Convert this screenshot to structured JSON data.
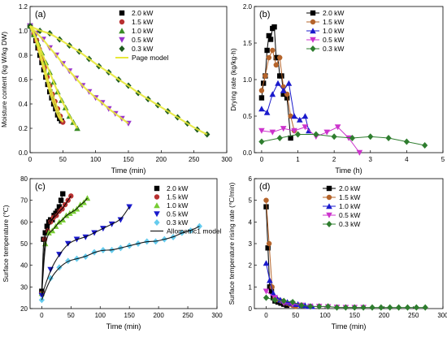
{
  "chart_data": [
    {
      "panel": "(a)",
      "type": "scatter",
      "xlabel": "Time (min)",
      "ylabel": "Moisture content (kg W/kg DW)",
      "xlim": [
        0,
        300
      ],
      "ylim": [
        0,
        1.2
      ],
      "xticks": [
        "0",
        "50",
        "100",
        "150",
        "200",
        "250",
        "300"
      ],
      "yticks": [
        "0.0",
        "0.2",
        "0.4",
        "0.6",
        "0.8",
        "1.0",
        "1.2"
      ],
      "legend_position": "top-center",
      "series": [
        {
          "name": "2.0 kW",
          "color": "#000000",
          "marker": "square",
          "x": [
            0,
            6,
            9,
            12,
            15,
            18,
            21,
            24,
            27,
            30,
            33,
            36,
            39,
            42,
            45,
            48
          ],
          "y": [
            1.04,
            0.97,
            0.92,
            0.86,
            0.8,
            0.74,
            0.68,
            0.62,
            0.56,
            0.5,
            0.45,
            0.4,
            0.36,
            0.31,
            0.28,
            0.26
          ]
        },
        {
          "name": "1.5 kW",
          "color": "#b83030",
          "marker": "circle",
          "x": [
            0,
            6,
            10,
            14,
            18,
            22,
            26,
            30,
            34,
            38,
            42,
            46,
            50
          ],
          "y": [
            1.04,
            0.98,
            0.92,
            0.85,
            0.77,
            0.7,
            0.62,
            0.55,
            0.48,
            0.42,
            0.36,
            0.3,
            0.25
          ]
        },
        {
          "name": "1.0 kW",
          "color": "#3a8c26",
          "marker": "triangle-up",
          "x": [
            0,
            6,
            12,
            18,
            24,
            30,
            36,
            42,
            48,
            54,
            60,
            66,
            72
          ],
          "y": [
            1.04,
            0.97,
            0.9,
            0.82,
            0.74,
            0.66,
            0.58,
            0.5,
            0.43,
            0.37,
            0.3,
            0.25,
            0.2
          ]
        },
        {
          "name": "0.5 kW",
          "color": "#9933cc",
          "marker": "triangle-down",
          "x": [
            0,
            10,
            20,
            30,
            40,
            50,
            60,
            70,
            80,
            90,
            100,
            110,
            120,
            130,
            140,
            150
          ],
          "y": [
            1.04,
            0.98,
            0.93,
            0.86,
            0.8,
            0.73,
            0.67,
            0.61,
            0.55,
            0.5,
            0.45,
            0.41,
            0.36,
            0.32,
            0.28,
            0.24
          ]
        },
        {
          "name": "0.3 kW",
          "color": "#1f5c1f",
          "marker": "diamond",
          "x": [
            0,
            15,
            30,
            45,
            60,
            75,
            90,
            105,
            120,
            135,
            150,
            165,
            180,
            195,
            210,
            225,
            240,
            255,
            270
          ],
          "y": [
            1.04,
            1.0,
            0.98,
            0.93,
            0.88,
            0.83,
            0.77,
            0.71,
            0.66,
            0.6,
            0.55,
            0.49,
            0.44,
            0.39,
            0.34,
            0.29,
            0.24,
            0.19,
            0.15
          ]
        },
        {
          "name": "Page model",
          "color": "#e8e83a",
          "type": "line"
        }
      ]
    },
    {
      "panel": "(b)",
      "type": "line",
      "xlabel": "Time (h)",
      "ylabel": "Drying rate (kg/kg·h)",
      "xlim": [
        -0.2,
        5
      ],
      "ylim": [
        0,
        2
      ],
      "xticks": [
        "0",
        "1",
        "2",
        "3",
        "4",
        "5"
      ],
      "yticks": [
        "0.0",
        "0.5",
        "1.0",
        "1.5",
        "2.0"
      ],
      "legend_position": "top-right",
      "series": [
        {
          "name": "2.0 kW",
          "color": "#000000",
          "marker": "square",
          "x": [
            0.0,
            0.05,
            0.1,
            0.15,
            0.2,
            0.25,
            0.3,
            0.35,
            0.4,
            0.45,
            0.5,
            0.55,
            0.6,
            0.7,
            0.8
          ],
          "y": [
            0.75,
            0.95,
            1.05,
            1.4,
            1.6,
            1.55,
            1.7,
            1.72,
            1.3,
            1.3,
            1.05,
            1.05,
            0.8,
            0.75,
            0.2
          ]
        },
        {
          "name": "1.5 kW",
          "color": "#b5642b",
          "marker": "circle",
          "x": [
            0.0,
            0.1,
            0.2,
            0.3,
            0.4,
            0.5,
            0.6,
            0.7,
            0.8,
            0.9
          ],
          "y": [
            0.85,
            1.05,
            1.3,
            1.4,
            1.2,
            1.3,
            0.9,
            0.8,
            0.5,
            0.3
          ]
        },
        {
          "name": "1.0 kW",
          "color": "#1a1acc",
          "marker": "triangle-up",
          "x": [
            0.0,
            0.15,
            0.3,
            0.45,
            0.6,
            0.75,
            0.9,
            1.05,
            1.2,
            1.3
          ],
          "y": [
            0.6,
            0.55,
            0.8,
            0.95,
            0.85,
            0.95,
            0.5,
            0.45,
            0.5,
            0.3
          ]
        },
        {
          "name": "0.5 kW",
          "color": "#cc33cc",
          "marker": "triangle-down",
          "x": [
            0.0,
            0.3,
            0.6,
            0.9,
            1.2,
            1.5,
            1.8,
            2.1,
            2.4,
            2.7
          ],
          "y": [
            0.3,
            0.28,
            0.33,
            0.3,
            0.35,
            0.22,
            0.28,
            0.35,
            0.2,
            0.0
          ]
        },
        {
          "name": "0.3 kW",
          "color": "#2e7d2e",
          "marker": "diamond",
          "x": [
            0.0,
            0.5,
            1.0,
            1.5,
            2.0,
            2.5,
            3.0,
            3.5,
            4.0,
            4.5
          ],
          "y": [
            0.15,
            0.2,
            0.25,
            0.25,
            0.22,
            0.2,
            0.22,
            0.2,
            0.15,
            0.1
          ]
        }
      ]
    },
    {
      "panel": "(c)",
      "type": "scatter",
      "xlabel": "Time (min)",
      "ylabel": "Surface temperature (℃)",
      "xlim": [
        -20,
        300
      ],
      "ylim": [
        20,
        80
      ],
      "xticks": [
        "0",
        "50",
        "100",
        "150",
        "200",
        "250",
        "300"
      ],
      "yticks": [
        "20",
        "30",
        "40",
        "50",
        "60",
        "70",
        "80"
      ],
      "legend_position": "top-right",
      "series": [
        {
          "name": "2.0 kW",
          "color": "#000000",
          "marker": "square",
          "x": [
            0,
            3,
            6,
            9,
            12,
            15,
            18,
            21,
            24,
            27,
            30,
            33,
            36
          ],
          "y": [
            28,
            52,
            55,
            58,
            60,
            61,
            61,
            63,
            64,
            65,
            67,
            70,
            73
          ]
        },
        {
          "name": "1.5 kW",
          "color": "#b83030",
          "marker": "circle",
          "x": [
            0,
            5,
            10,
            15,
            20,
            25,
            30,
            35,
            40,
            45,
            50
          ],
          "y": [
            27,
            52,
            56,
            60,
            62,
            63,
            65,
            66,
            68,
            70,
            72
          ]
        },
        {
          "name": "1.0 kW",
          "color": "#77cc33",
          "marker": "triangle-up",
          "x": [
            0,
            6,
            12,
            18,
            24,
            30,
            36,
            42,
            48,
            54,
            60,
            66,
            72,
            78
          ],
          "y": [
            27,
            50,
            55,
            56,
            58,
            60,
            61,
            63,
            64,
            65,
            66,
            68,
            69,
            71
          ]
        },
        {
          "name": "0.5 kW",
          "color": "#1a1acc",
          "marker": "triangle-down",
          "x": [
            0,
            15,
            30,
            45,
            60,
            75,
            90,
            105,
            120,
            135,
            150
          ],
          "y": [
            26,
            38,
            45,
            50,
            52,
            53,
            55,
            57,
            59,
            61,
            67
          ]
        },
        {
          "name": "0.3 kW",
          "color": "#66ccee",
          "marker": "diamond",
          "x": [
            0,
            15,
            30,
            45,
            60,
            75,
            90,
            105,
            120,
            135,
            150,
            165,
            180,
            195,
            210,
            225,
            240,
            255,
            270
          ],
          "y": [
            24,
            34,
            39,
            42,
            43,
            44,
            46,
            47,
            47,
            48,
            49,
            50,
            51,
            51,
            52,
            53,
            55,
            56,
            58
          ]
        },
        {
          "name": "Allometric1 model",
          "color": "#000000",
          "type": "line"
        }
      ]
    },
    {
      "panel": "(d)",
      "type": "line",
      "xlabel": "Time (min)",
      "ylabel": "Surface temperature rising rate (℃/min)",
      "xlim": [
        -20,
        300
      ],
      "ylim": [
        0,
        6
      ],
      "xticks": [
        "0",
        "50",
        "100",
        "150",
        "200",
        "250",
        "300"
      ],
      "yticks": [
        "0",
        "1",
        "2",
        "3",
        "4",
        "5",
        "6"
      ],
      "legend_position": "top-right",
      "series": [
        {
          "name": "2.0 kW",
          "color": "#000000",
          "marker": "square",
          "x": [
            0,
            3,
            6,
            9,
            12,
            15,
            20,
            25,
            30,
            35
          ],
          "y": [
            4.7,
            2.8,
            1.0,
            0.8,
            0.5,
            0.35,
            0.3,
            0.25,
            0.2,
            0.15
          ]
        },
        {
          "name": "1.5 kW",
          "color": "#b5642b",
          "marker": "circle",
          "x": [
            0,
            5,
            10,
            15,
            20,
            25,
            30,
            35,
            40,
            45,
            50
          ],
          "y": [
            5.0,
            3.0,
            1.0,
            0.5,
            0.4,
            0.35,
            0.3,
            0.25,
            0.2,
            0.15,
            0.1
          ]
        },
        {
          "name": "1.0 kW",
          "color": "#1a1acc",
          "marker": "triangle-up",
          "x": [
            0,
            6,
            12,
            18,
            24,
            30,
            36,
            42,
            48,
            54,
            60,
            66,
            72,
            78
          ],
          "y": [
            2.1,
            1.3,
            0.7,
            0.5,
            0.4,
            0.35,
            0.3,
            0.25,
            0.2,
            0.2,
            0.15,
            0.15,
            0.1,
            0.1
          ]
        },
        {
          "name": "0.5 kW",
          "color": "#cc33cc",
          "marker": "triangle-down",
          "x": [
            0,
            15,
            30,
            45,
            60,
            75,
            90,
            105,
            120,
            135,
            150,
            165
          ],
          "y": [
            0.8,
            0.5,
            0.25,
            0.2,
            0.15,
            0.1,
            0.1,
            0.08,
            0.06,
            0.05,
            0.05,
            0.05
          ]
        },
        {
          "name": "0.3 kW",
          "color": "#2e7d2e",
          "marker": "diamond",
          "x": [
            0,
            15,
            30,
            45,
            60,
            75,
            90,
            105,
            120,
            135,
            150,
            165,
            180,
            195,
            210,
            225,
            240,
            255,
            270
          ],
          "y": [
            0.5,
            0.4,
            0.35,
            0.3,
            0.15,
            0.1,
            0.1,
            0.1,
            0.05,
            0.05,
            0.05,
            0.05,
            0.05,
            0.05,
            0.05,
            0.05,
            0.05,
            0.05,
            0.05
          ]
        }
      ]
    }
  ]
}
